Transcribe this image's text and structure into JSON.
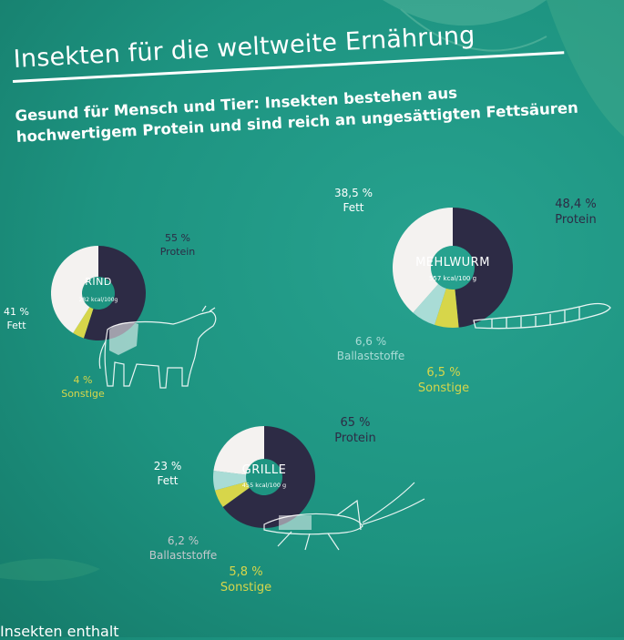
{
  "header": {
    "title": "Insekten für die weltweite Ernährung",
    "subtitle_line1": "Gesund für Mensch und Tier: Insekten bestehen aus",
    "subtitle_line2": "hochwertigem Protein und sind reich an ungesättigten Fettsäuren"
  },
  "footer": {
    "text": "Insekten enthalt"
  },
  "colors": {
    "protein": "#2d2b45",
    "fett": "#f4f2f0",
    "ballaststoffe": "#a9dcd6",
    "sonstige": "#d7d64a",
    "background": "#1d9380"
  },
  "icons": [
    "cow-illustration",
    "mealworm-illustration",
    "cricket-illustration",
    "palm-leaf-decoration"
  ],
  "chart_data": [
    {
      "type": "pie",
      "variant": "donut",
      "name": "RIND",
      "energy": "282 kcal/100g",
      "slices": [
        {
          "category": "protein",
          "value": 55,
          "percent_label": "55 %",
          "name": "Protein"
        },
        {
          "category": "sonstige",
          "value": 4,
          "percent_label": "4 %",
          "name": "Sonstige"
        },
        {
          "category": "fett",
          "value": 41,
          "percent_label": "41 %",
          "name": "Fett"
        }
      ]
    },
    {
      "type": "pie",
      "variant": "donut",
      "name": "MEHLWURM",
      "energy": "557 kcal/100 g",
      "slices": [
        {
          "category": "protein",
          "value": 48.4,
          "percent_label": "48,4 %",
          "name": "Protein"
        },
        {
          "category": "sonstige",
          "value": 6.5,
          "percent_label": "6,5 %",
          "name": "Sonstige"
        },
        {
          "category": "ballaststoffe",
          "value": 6.6,
          "percent_label": "6,6 %",
          "name": "Ballaststoffe"
        },
        {
          "category": "fett",
          "value": 38.5,
          "percent_label": "38,5 %",
          "name": "Fett"
        }
      ]
    },
    {
      "type": "pie",
      "variant": "donut",
      "name": "GRILLE",
      "energy": "455 kcal/100 g",
      "slices": [
        {
          "category": "protein",
          "value": 65,
          "percent_label": "65 %",
          "name": "Protein"
        },
        {
          "category": "sonstige",
          "value": 5.8,
          "percent_label": "5,8 %",
          "name": "Sonstige"
        },
        {
          "category": "ballaststoffe",
          "value": 6.2,
          "percent_label": "6,2 %",
          "name": "Ballaststoffe"
        },
        {
          "category": "fett",
          "value": 23,
          "percent_label": "23 %",
          "name": "Fett"
        }
      ]
    }
  ]
}
